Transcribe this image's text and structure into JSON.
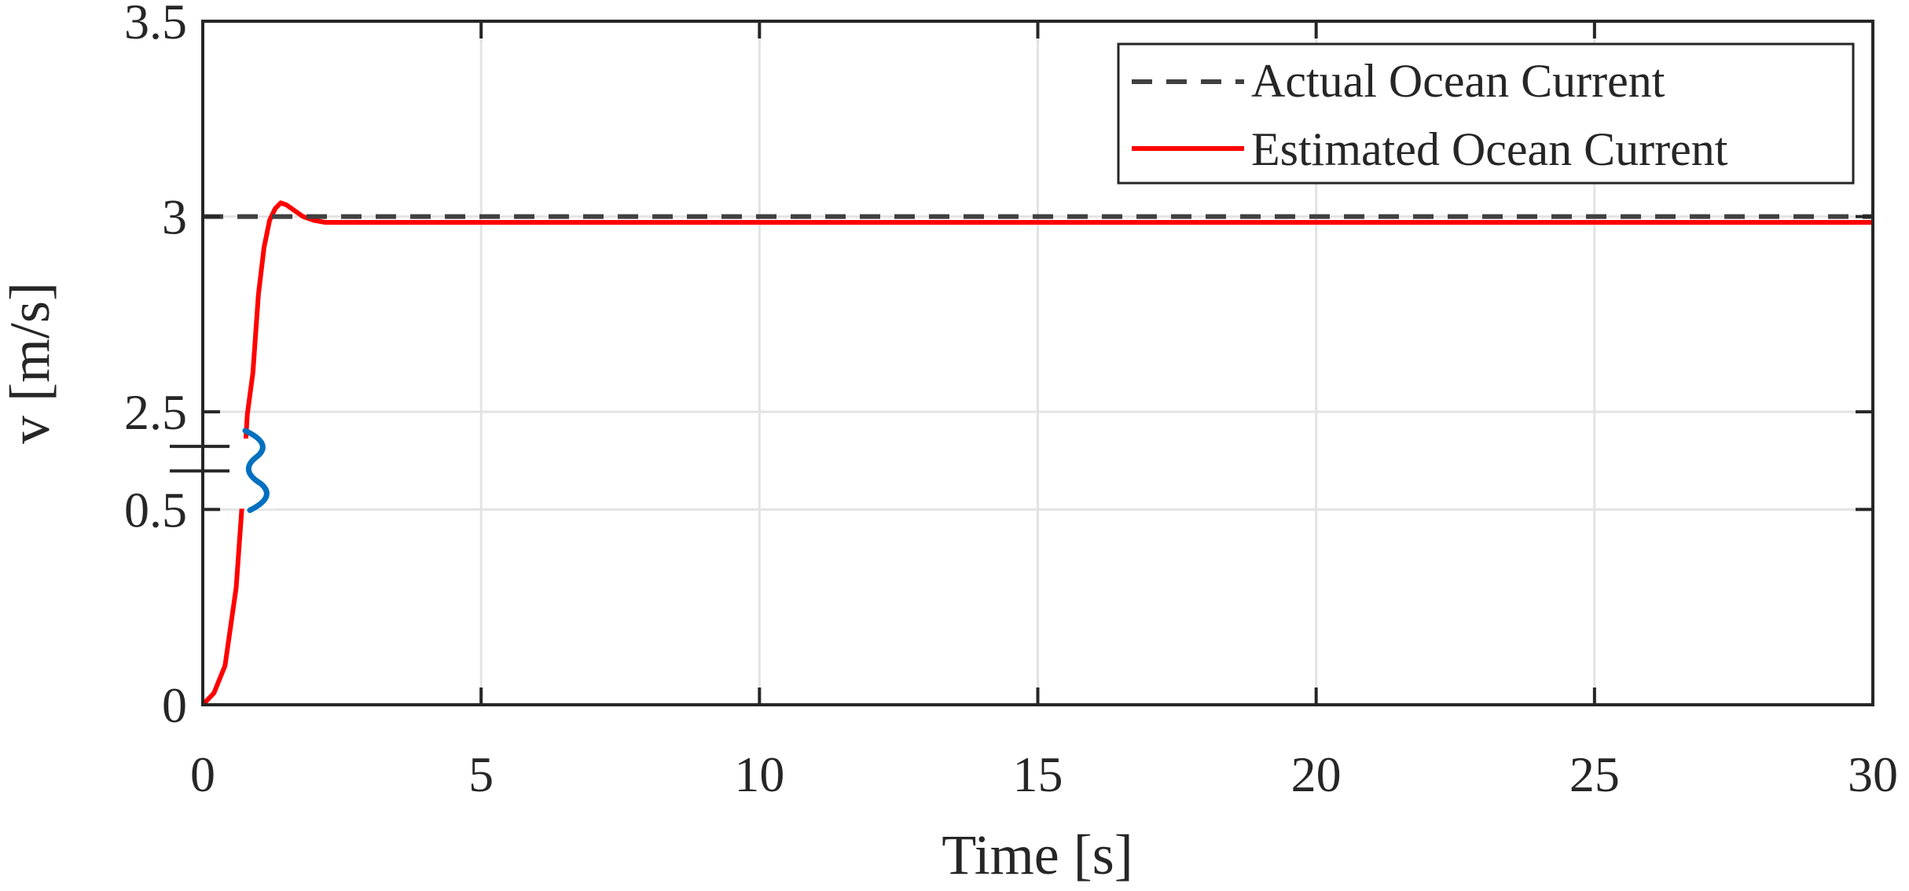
{
  "chart_data": {
    "type": "line",
    "xlabel": "Time [s]",
    "ylabel": "v [m/s]",
    "xlim": [
      0,
      30
    ],
    "x_ticks": [
      0,
      5,
      10,
      15,
      20,
      25,
      30
    ],
    "x_tick_labels": [
      "0",
      "5",
      "10",
      "15",
      "20",
      "25",
      "30"
    ],
    "y_axis_break": {
      "lower_range": [
        0,
        0.5
      ],
      "upper_range": [
        2.5,
        3.5
      ],
      "marker_color": "#0070c0"
    },
    "y_ticks": [
      0,
      0.5,
      2.5,
      3,
      3.5
    ],
    "y_tick_labels": [
      "0",
      "0.5",
      "2.5",
      "3",
      "3.5"
    ],
    "grid": true,
    "legend_position": "top-right",
    "series": [
      {
        "name": "Actual Ocean Current",
        "color": "#404040",
        "style": "dashed",
        "x": [
          0,
          30
        ],
        "y": [
          3.0,
          3.0
        ]
      },
      {
        "name": "Estimated Ocean Current",
        "color": "#ff0000",
        "style": "solid",
        "x": [
          0,
          0.2,
          0.4,
          0.6,
          0.7,
          0.8,
          0.9,
          1.0,
          1.1,
          1.2,
          1.3,
          1.4,
          1.5,
          1.6,
          1.7,
          1.8,
          2.0,
          2.2,
          2.5,
          3.0,
          5,
          10,
          15,
          20,
          25,
          30
        ],
        "y": [
          0.0,
          0.03,
          0.1,
          0.3,
          0.5,
          2.45,
          2.6,
          2.8,
          2.92,
          2.99,
          3.02,
          3.035,
          3.03,
          3.02,
          3.01,
          3.0,
          2.99,
          2.985,
          2.985,
          2.985,
          2.985,
          2.985,
          2.985,
          2.985,
          2.985,
          2.985
        ]
      }
    ]
  }
}
